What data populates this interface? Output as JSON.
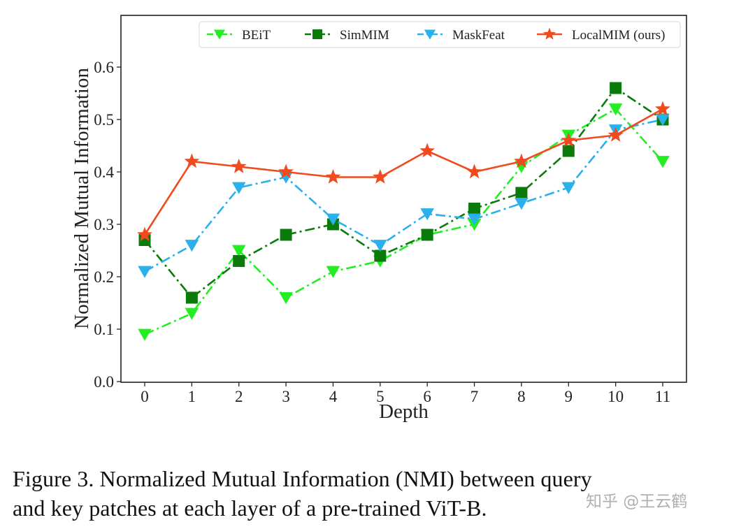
{
  "chart_data": {
    "type": "line",
    "title": "",
    "xlabel": "Depth",
    "ylabel": "Normalized Mutual Information",
    "x": [
      0,
      1,
      2,
      3,
      4,
      5,
      6,
      7,
      8,
      9,
      10,
      11
    ],
    "x_tick_labels": [
      "0",
      "1",
      "2",
      "3",
      "4",
      "5",
      "6",
      "7",
      "8",
      "9",
      "10",
      "11"
    ],
    "y_tick_labels": [
      "0.0",
      "0.1",
      "0.2",
      "0.3",
      "0.4",
      "0.5",
      "0.6"
    ],
    "y_ticks": [
      0.0,
      0.1,
      0.2,
      0.3,
      0.4,
      0.5,
      0.6
    ],
    "xlim": [
      -0.5,
      11.5
    ],
    "ylim": [
      0.0,
      0.67
    ],
    "grid": false,
    "legend_position": "top-right",
    "series": [
      {
        "name": "BEiT",
        "color": "#22ee22",
        "marker": "triangle-down",
        "linestyle": "dash-dot",
        "values": [
          0.09,
          0.13,
          0.25,
          0.16,
          0.21,
          0.23,
          0.28,
          0.3,
          0.41,
          0.47,
          0.52,
          0.42
        ]
      },
      {
        "name": "SimMIM",
        "color": "#0a7a0a",
        "marker": "square",
        "linestyle": "dash-dot",
        "values": [
          0.27,
          0.16,
          0.23,
          0.28,
          0.3,
          0.24,
          0.28,
          0.33,
          0.36,
          0.44,
          0.56,
          0.5
        ]
      },
      {
        "name": "MaskFeat",
        "color": "#2ab0ea",
        "marker": "triangle-down",
        "linestyle": "dash-dot",
        "values": [
          0.21,
          0.26,
          0.37,
          0.39,
          0.31,
          0.26,
          0.32,
          0.31,
          0.34,
          0.37,
          0.48,
          0.5
        ]
      },
      {
        "name": "LocalMIM (ours)",
        "color": "#f04a1e",
        "marker": "star",
        "linestyle": "solid",
        "values": [
          0.28,
          0.42,
          0.41,
          0.4,
          0.39,
          0.39,
          0.44,
          0.4,
          0.42,
          0.46,
          0.47,
          0.52
        ]
      }
    ]
  },
  "caption": {
    "line1": "Figure 3.  Normalized Mutual Information (NMI) between query",
    "line2": "and key patches at each layer of a pre-trained ViT-B."
  },
  "watermark": "知乎 @王云鹤"
}
